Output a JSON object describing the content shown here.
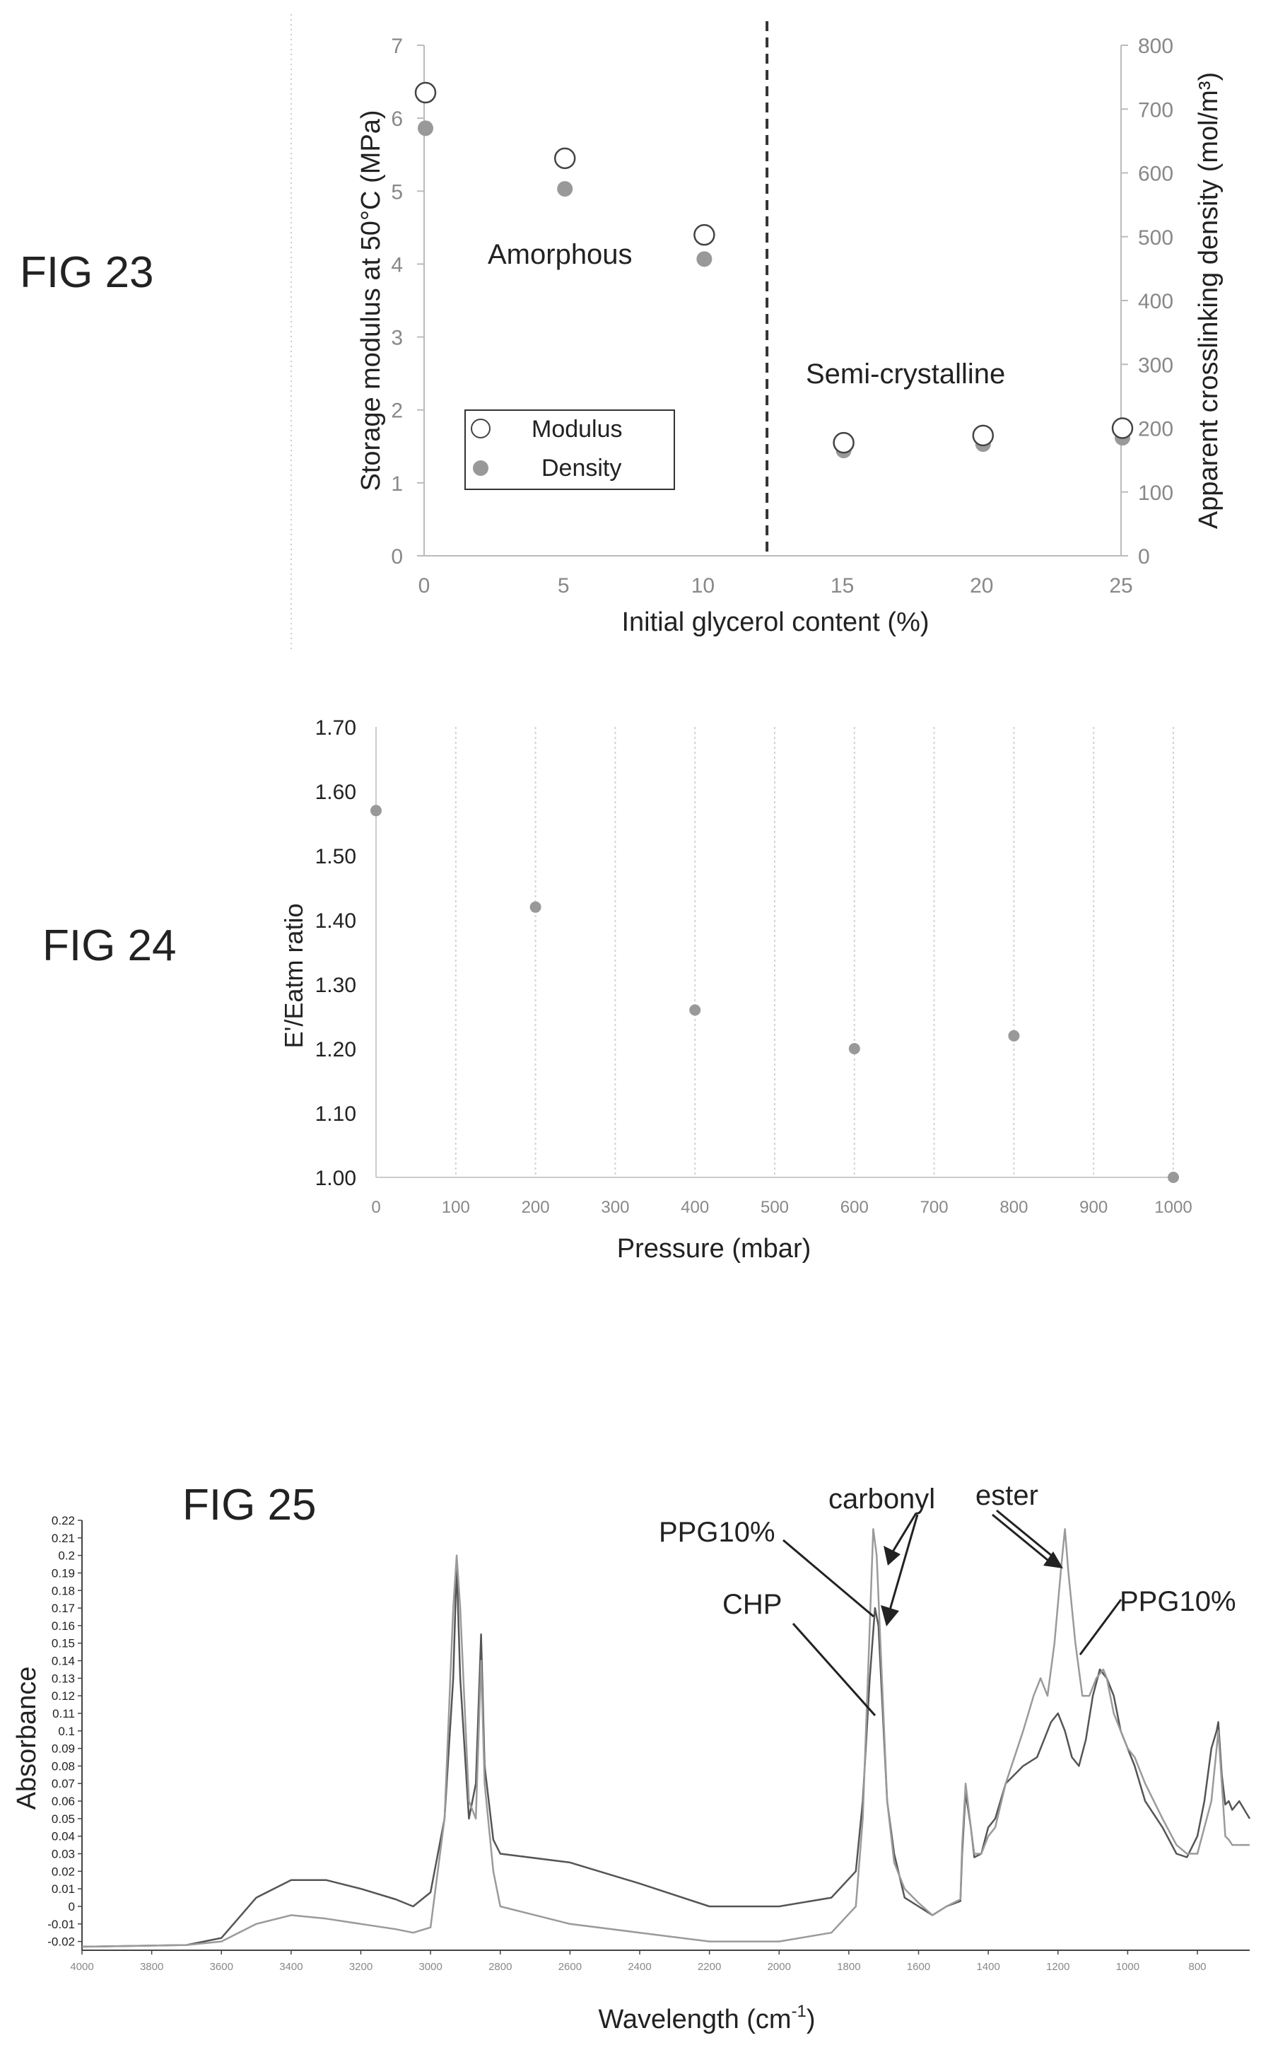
{
  "figures": {
    "fig23": "FIG 23",
    "fig24": "FIG 24",
    "fig25": "FIG 25"
  },
  "colors": {
    "marker_fill": "#999999",
    "open_marker_stroke": "#444444",
    "dashed_line": "#333333",
    "spectrum_dark": "#555555",
    "spectrum_light": "#9a9a9a"
  },
  "chart_data": [
    {
      "id": "fig23",
      "type": "scatter",
      "title": "",
      "xlabel": "Initial glycerol content (%)",
      "ylabel": "Storage modulus at 50°C (MPa)",
      "y2label": "Apparent crosslinking density (mol/m³)",
      "xlim": [
        0,
        25
      ],
      "ylim": [
        0,
        7
      ],
      "y2lim": [
        0,
        800
      ],
      "x_ticks": [
        "0",
        "5",
        "10",
        "15",
        "20",
        "25"
      ],
      "y_ticks": [
        "0",
        "1",
        "2",
        "3",
        "4",
        "5",
        "6",
        "7"
      ],
      "y2_ticks": [
        "0",
        "100",
        "200",
        "300",
        "400",
        "500",
        "600",
        "700",
        "800"
      ],
      "grid": false,
      "legend_position": "bottom-left",
      "series": [
        {
          "name": "Modulus",
          "marker": "open-circle",
          "axis": "left",
          "x": [
            0,
            5,
            10,
            15,
            20,
            25
          ],
          "y": [
            6.35,
            5.45,
            4.4,
            1.55,
            1.65,
            1.75
          ]
        },
        {
          "name": "Density",
          "marker": "filled-circle",
          "axis": "right",
          "x": [
            0,
            5,
            10,
            15,
            20,
            25
          ],
          "y": [
            670,
            575,
            465,
            165,
            175,
            185
          ]
        }
      ],
      "divider_x": 12.3,
      "annotations": {
        "amorphous": "Amorphous",
        "semicrystalline": "Semi-crystalline"
      }
    },
    {
      "id": "fig24",
      "type": "scatter",
      "title": "",
      "xlabel": "Pressure (mbar)",
      "ylabel": "E'/Eatm ratio",
      "xlim": [
        0,
        1000
      ],
      "ylim": [
        1.0,
        1.7
      ],
      "x_ticks": [
        "0",
        "100",
        "200",
        "300",
        "400",
        "500",
        "600",
        "700",
        "800",
        "900",
        "1000"
      ],
      "y_ticks": [
        "1.00",
        "1.10",
        "1.20",
        "1.30",
        "1.40",
        "1.50",
        "1.60",
        "1.70"
      ],
      "grid": true,
      "series": [
        {
          "x": [
            0,
            200,
            400,
            600,
            800,
            1000
          ],
          "y": [
            1.57,
            1.42,
            1.26,
            1.2,
            1.22,
            1.0
          ]
        }
      ]
    },
    {
      "id": "fig25",
      "type": "line",
      "title": "",
      "xlabel": "Wavelength (cm-1)",
      "xlabel_main": "Wavelength (cm",
      "xlabel_sup": "-1",
      "xlabel_end": ")",
      "ylabel": "Absorbance",
      "xlim": [
        4000,
        650
      ],
      "ylim": [
        -0.025,
        0.22
      ],
      "x_ticks": [
        "4000",
        "3800",
        "3600",
        "3400",
        "3200",
        "3000",
        "2800",
        "2600",
        "2400",
        "2200",
        "2000",
        "1800",
        "1600",
        "1400",
        "1200",
        "1000",
        "800"
      ],
      "y_ticks": [
        "-0.02",
        "-0.01",
        "0",
        "0.01",
        "0.02",
        "0.03",
        "0.04",
        "0.05",
        "0.06",
        "0.07",
        "0.08",
        "0.09",
        "0.1",
        "0.11",
        "0.12",
        "0.13",
        "0.14",
        "0.15",
        "0.16",
        "0.17",
        "0.18",
        "0.19",
        "0.2",
        "0.21",
        "0.22"
      ],
      "grid": false,
      "series": [
        {
          "label_ref": "CHP",
          "color": "#555555",
          "x": [
            4000,
            3700,
            3600,
            3500,
            3400,
            3300,
            3200,
            3100,
            3050,
            3000,
            2960,
            2935,
            2925,
            2915,
            2890,
            2870,
            2855,
            2845,
            2820,
            2800,
            2600,
            2400,
            2200,
            2000,
            1850,
            1780,
            1760,
            1740,
            1725,
            1715,
            1705,
            1690,
            1670,
            1640,
            1600,
            1560,
            1520,
            1480,
            1475,
            1465,
            1450,
            1440,
            1420,
            1400,
            1380,
            1350,
            1300,
            1260,
            1240,
            1220,
            1200,
            1180,
            1160,
            1140,
            1120,
            1100,
            1080,
            1060,
            1040,
            1020,
            1000,
            980,
            950,
            900,
            860,
            830,
            800,
            780,
            760,
            745,
            740,
            730,
            720,
            710,
            700,
            680,
            650
          ],
          "y": [
            -0.023,
            -0.022,
            -0.018,
            0.005,
            0.015,
            0.015,
            0.01,
            0.004,
            0.0,
            0.008,
            0.05,
            0.13,
            0.195,
            0.13,
            0.05,
            0.07,
            0.155,
            0.08,
            0.038,
            0.03,
            0.025,
            0.013,
            0.0,
            0.0,
            0.005,
            0.02,
            0.06,
            0.13,
            0.17,
            0.16,
            0.12,
            0.06,
            0.03,
            0.005,
            0.0,
            -0.005,
            0.0,
            0.003,
            0.03,
            0.065,
            0.045,
            0.028,
            0.03,
            0.045,
            0.05,
            0.07,
            0.08,
            0.085,
            0.095,
            0.105,
            0.11,
            0.1,
            0.085,
            0.08,
            0.095,
            0.12,
            0.135,
            0.13,
            0.12,
            0.1,
            0.09,
            0.08,
            0.06,
            0.045,
            0.03,
            0.028,
            0.04,
            0.06,
            0.09,
            0.1,
            0.105,
            0.075,
            0.058,
            0.06,
            0.055,
            0.06,
            0.05
          ]
        },
        {
          "label_ref": "PPG10%",
          "color": "#9a9a9a",
          "x": [
            4000,
            3700,
            3600,
            3500,
            3400,
            3300,
            3200,
            3100,
            3050,
            3000,
            2960,
            2935,
            2925,
            2915,
            2890,
            2870,
            2855,
            2845,
            2820,
            2800,
            2600,
            2400,
            2200,
            2000,
            1850,
            1780,
            1760,
            1740,
            1730,
            1720,
            1705,
            1690,
            1670,
            1640,
            1600,
            1560,
            1520,
            1480,
            1475,
            1465,
            1450,
            1440,
            1420,
            1400,
            1380,
            1350,
            1300,
            1270,
            1250,
            1230,
            1210,
            1190,
            1180,
            1170,
            1150,
            1130,
            1110,
            1090,
            1070,
            1060,
            1040,
            1020,
            1000,
            980,
            950,
            900,
            860,
            830,
            800,
            780,
            760,
            745,
            740,
            730,
            720,
            710,
            700,
            680,
            650
          ],
          "y": [
            -0.023,
            -0.022,
            -0.02,
            -0.01,
            -0.005,
            -0.007,
            -0.01,
            -0.013,
            -0.015,
            -0.012,
            0.05,
            0.17,
            0.2,
            0.17,
            0.06,
            0.05,
            0.14,
            0.07,
            0.02,
            0.0,
            -0.01,
            -0.015,
            -0.02,
            -0.02,
            -0.015,
            0.0,
            0.05,
            0.16,
            0.215,
            0.2,
            0.13,
            0.06,
            0.025,
            0.01,
            0.002,
            -0.005,
            0.0,
            0.004,
            0.035,
            0.07,
            0.045,
            0.03,
            0.03,
            0.04,
            0.045,
            0.07,
            0.1,
            0.12,
            0.13,
            0.12,
            0.15,
            0.195,
            0.215,
            0.19,
            0.15,
            0.12,
            0.12,
            0.13,
            0.135,
            0.13,
            0.11,
            0.1,
            0.09,
            0.085,
            0.07,
            0.05,
            0.035,
            0.03,
            0.03,
            0.045,
            0.06,
            0.09,
            0.1,
            0.07,
            0.04,
            0.038,
            0.035,
            0.035,
            0.035
          ]
        }
      ],
      "annotations": {
        "carbonyl": "carbonyl",
        "ester": "ester",
        "ppg_carbonyl": "PPG10%",
        "ppg_ester": "PPG10%",
        "chp": "CHP"
      }
    }
  ],
  "fig23_legend": {
    "modulus": "Modulus",
    "density": "Density"
  }
}
